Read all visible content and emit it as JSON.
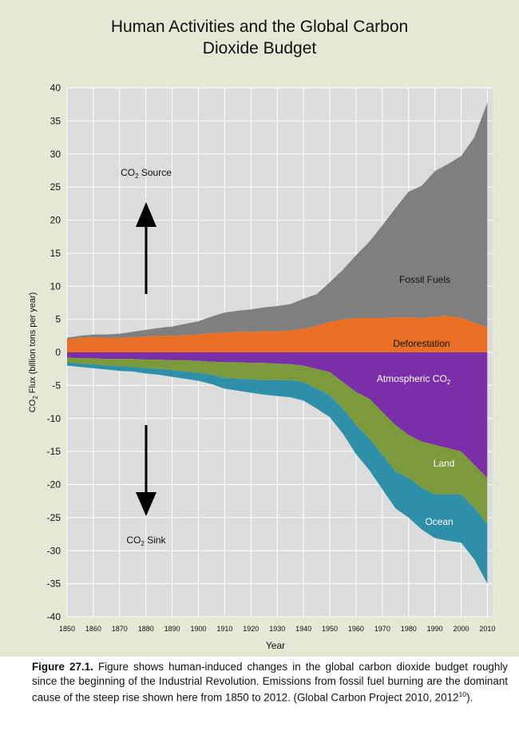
{
  "title": {
    "line1": "Human Activities and the Global Carbon",
    "line2": "Dioxide Budget"
  },
  "chart_data": {
    "type": "area",
    "title": "Human Activities and the Global Carbon Dioxide Budget",
    "xlabel": "Year",
    "ylabel_main": "CO",
    "ylabel_sub": "2",
    "ylabel_rest": " Flux (billion tons per year)",
    "xlim": [
      1850,
      2012
    ],
    "ylim": [
      -40,
      40
    ],
    "x_ticks": [
      1850,
      1860,
      1870,
      1880,
      1890,
      1900,
      1910,
      1920,
      1930,
      1940,
      1950,
      1960,
      1970,
      1980,
      1990,
      2000,
      2010
    ],
    "y_ticks": [
      40,
      35,
      30,
      25,
      20,
      15,
      10,
      5,
      0,
      -5,
      -10,
      -15,
      -20,
      -25,
      -30,
      -35,
      -40
    ],
    "grid": true,
    "x": [
      1850,
      1855,
      1860,
      1865,
      1870,
      1875,
      1880,
      1885,
      1890,
      1895,
      1900,
      1905,
      1910,
      1915,
      1920,
      1925,
      1930,
      1935,
      1940,
      1945,
      1950,
      1955,
      1960,
      1965,
      1970,
      1975,
      1980,
      1985,
      1990,
      1995,
      2000,
      2005,
      2010
    ],
    "series": [
      {
        "name": "Deforestation",
        "color": "#e86f24",
        "values": [
          2.0,
          2.2,
          2.3,
          2.2,
          2.2,
          2.3,
          2.4,
          2.5,
          2.5,
          2.6,
          2.7,
          2.9,
          3.0,
          3.1,
          3.1,
          3.2,
          3.2,
          3.3,
          3.6,
          4.0,
          4.6,
          5.0,
          5.2,
          5.2,
          5.2,
          5.3,
          5.3,
          5.2,
          5.4,
          5.5,
          5.2,
          4.5,
          3.8
        ]
      },
      {
        "name": "Fossil Fuels",
        "color": "#7f7f7f",
        "values": [
          0.2,
          0.3,
          0.4,
          0.5,
          0.6,
          0.8,
          1.0,
          1.2,
          1.4,
          1.7,
          2.0,
          2.5,
          3.0,
          3.2,
          3.4,
          3.6,
          3.8,
          4.0,
          4.5,
          4.8,
          6.0,
          7.5,
          9.5,
          11.5,
          14.0,
          16.5,
          19.0,
          20.0,
          22.0,
          23.0,
          24.5,
          28.0,
          34.0
        ]
      },
      {
        "name": "Atmospheric CO2",
        "color": "#7a2fa8",
        "values": [
          -0.8,
          -0.9,
          -0.9,
          -1.0,
          -1.0,
          -1.0,
          -1.1,
          -1.1,
          -1.2,
          -1.2,
          -1.3,
          -1.4,
          -1.5,
          -1.5,
          -1.6,
          -1.6,
          -1.7,
          -1.8,
          -2.0,
          -2.5,
          -3.0,
          -4.5,
          -6.0,
          -7.0,
          -9.0,
          -11.0,
          -12.5,
          -13.5,
          -14.0,
          -14.5,
          -15.0,
          -17.0,
          -19.0
        ]
      },
      {
        "name": "Land",
        "color": "#7a9a3c",
        "values": [
          -0.7,
          -0.8,
          -0.9,
          -1.0,
          -1.1,
          -1.2,
          -1.3,
          -1.4,
          -1.5,
          -1.7,
          -1.8,
          -2.0,
          -2.4,
          -2.5,
          -2.5,
          -2.6,
          -2.5,
          -2.4,
          -2.5,
          -3.0,
          -3.5,
          -4.0,
          -5.0,
          -6.0,
          -6.5,
          -7.0,
          -6.5,
          -7.0,
          -7.5,
          -7.0,
          -6.5,
          -6.5,
          -7.0
        ]
      },
      {
        "name": "Ocean",
        "color": "#2d8fa8",
        "values": [
          -0.5,
          -0.5,
          -0.6,
          -0.6,
          -0.7,
          -0.7,
          -0.8,
          -0.9,
          -1.0,
          -1.1,
          -1.2,
          -1.4,
          -1.6,
          -1.8,
          -2.0,
          -2.2,
          -2.4,
          -2.6,
          -2.8,
          -3.0,
          -3.3,
          -3.8,
          -4.4,
          -4.8,
          -5.2,
          -5.6,
          -6.0,
          -6.3,
          -6.6,
          -7.0,
          -7.3,
          -7.8,
          -9.0
        ]
      }
    ],
    "annotations": {
      "source_prefix": "CO",
      "source_sub": "2",
      "source_suffix": " Source",
      "sink_prefix": "CO",
      "sink_sub": "2",
      "sink_suffix": " Sink",
      "fossil": "Fossil Fuels",
      "deforestation": "Deforestation",
      "atm_prefix": "Atmospheric CO",
      "atm_sub": "2",
      "land": "Land",
      "ocean": "Ocean"
    }
  },
  "caption": {
    "label": "Figure 27.1.",
    "text": " Figure shows human-induced changes in the global carbon dioxide budget roughly since the beginning of the Industrial Revolution. Emissions from fossil fuel burning are the dominant cause of the steep rise shown here from 1850 to 2012. (Global Carbon Project 2010, 2012",
    "ref": "10",
    "end": ")."
  }
}
